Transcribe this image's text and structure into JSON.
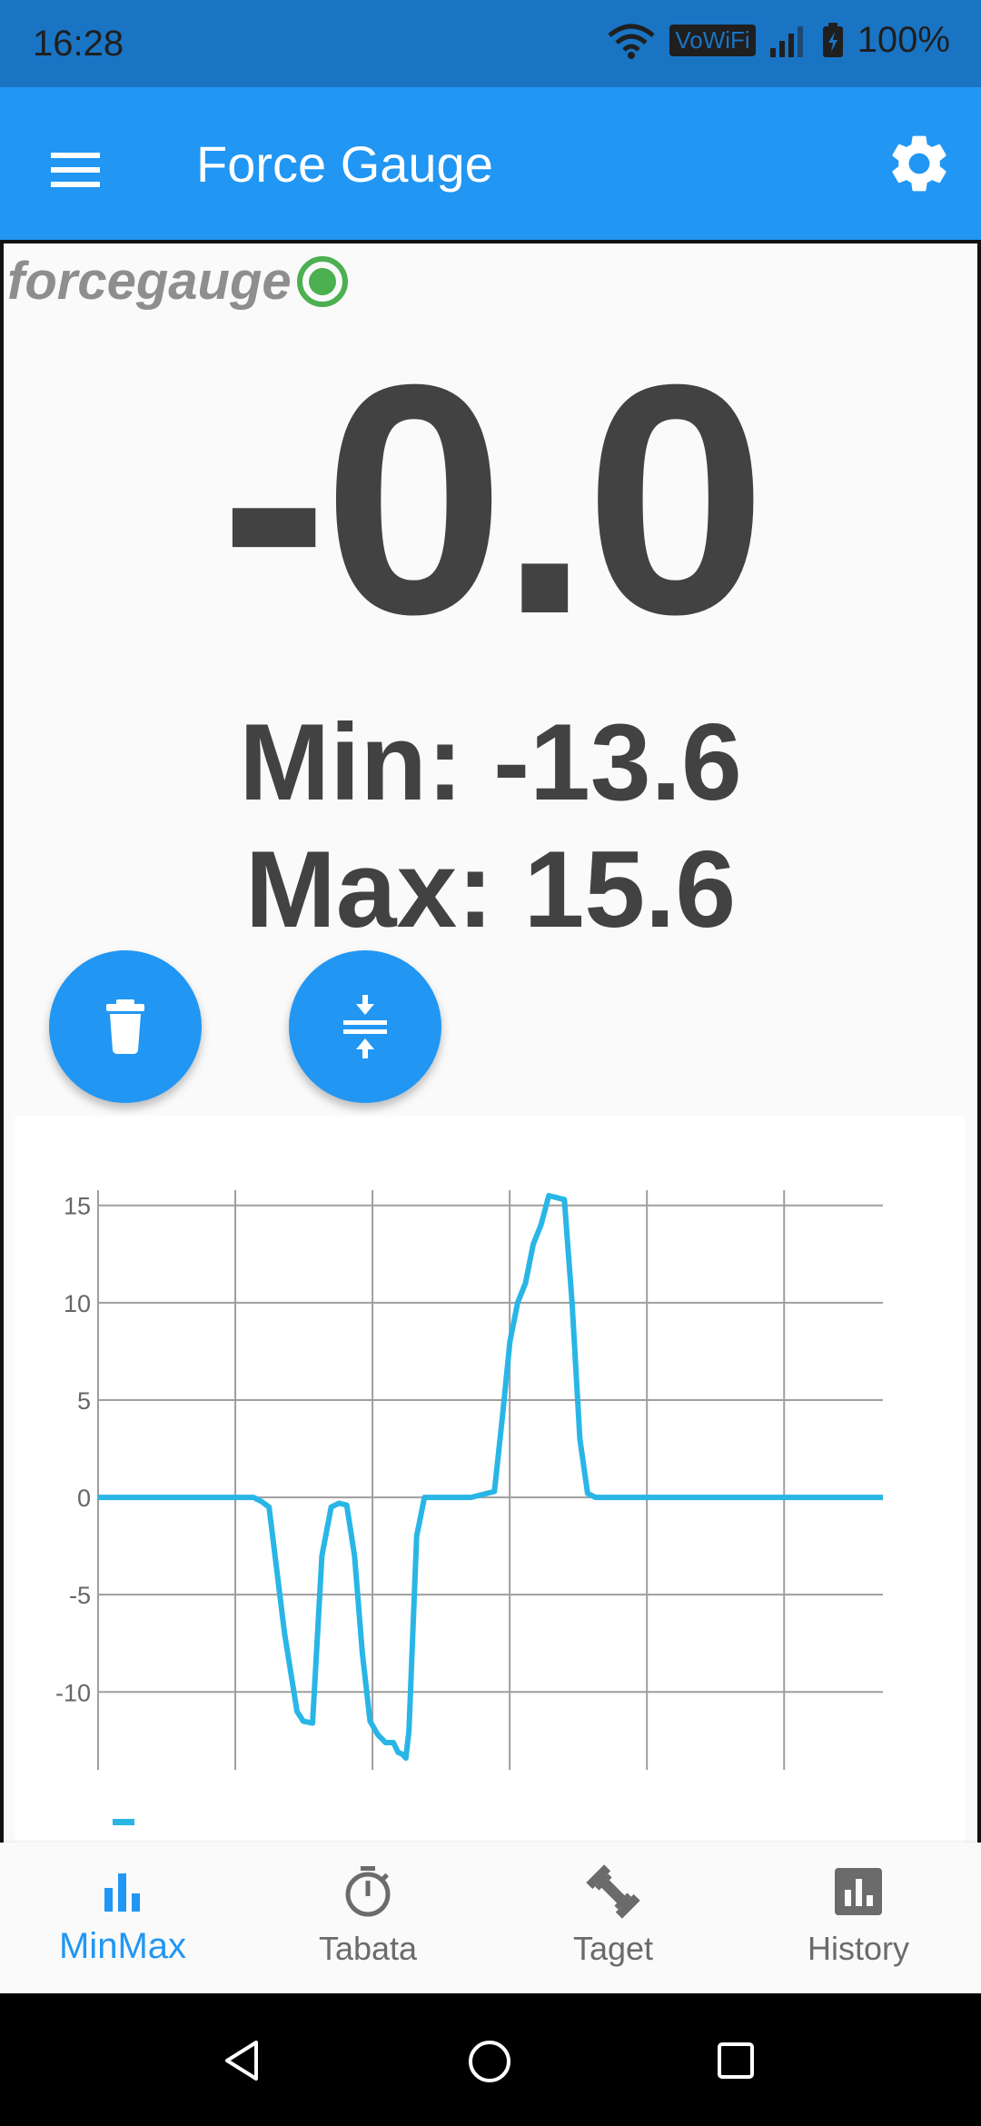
{
  "status_bar": {
    "time": "16:28",
    "network_badge": "VoWiFi",
    "battery": "100%"
  },
  "app_bar": {
    "title": "Force Gauge"
  },
  "logo": {
    "text": "forcegauge"
  },
  "gauge": {
    "current": "-0.0",
    "min_text": "Min: -13.6",
    "max_text": "Max: 15.6"
  },
  "colors": {
    "primary": "#2196f3",
    "status": "#1a74c4",
    "line": "#29b6e6",
    "connected": "#4caf50"
  },
  "chart_data": {
    "type": "line",
    "title": "",
    "xlabel": "",
    "ylabel": "",
    "ylim": [
      -14,
      15.5
    ],
    "yticks": [
      15,
      10,
      5,
      0,
      -5,
      -10
    ],
    "grid": true,
    "x": [
      0,
      4,
      8,
      10,
      10.5,
      11,
      12,
      12.8,
      13.2,
      13.8,
      14.4,
      15,
      15.5,
      16,
      16.5,
      17,
      17.5,
      18,
      18.5,
      19,
      19.3,
      19.6,
      19.8,
      20,
      20.5,
      21,
      22,
      23,
      24,
      25.5,
      26,
      26.5,
      27,
      27.5,
      28,
      28.5,
      29,
      30,
      30.5,
      31,
      31.5,
      32,
      32.5,
      33,
      33.3,
      33.8,
      34.3,
      35,
      40,
      45,
      50.5
    ],
    "values": [
      0,
      0,
      0,
      0,
      -0.2,
      -0.5,
      -7,
      -11,
      -11.5,
      -11.6,
      -3,
      -0.5,
      -0.3,
      -0.4,
      -3,
      -8,
      -11.5,
      -12.2,
      -12.6,
      -12.6,
      -13.1,
      -13.2,
      -13.4,
      -12,
      -2,
      0,
      0,
      0,
      0,
      0.3,
      4,
      8,
      10,
      11,
      13,
      14,
      15.5,
      15.3,
      10,
      3,
      0.2,
      0,
      0,
      0,
      0,
      0,
      0,
      0,
      0,
      0,
      0
    ],
    "series_legend": "-"
  },
  "nav": {
    "items": [
      {
        "label": "MinMax",
        "icon": "bar-chart-icon"
      },
      {
        "label": "Tabata",
        "icon": "timer-icon"
      },
      {
        "label": "Taget",
        "icon": "dumbbell-icon"
      },
      {
        "label": "History",
        "icon": "history-chart-icon"
      }
    ]
  }
}
